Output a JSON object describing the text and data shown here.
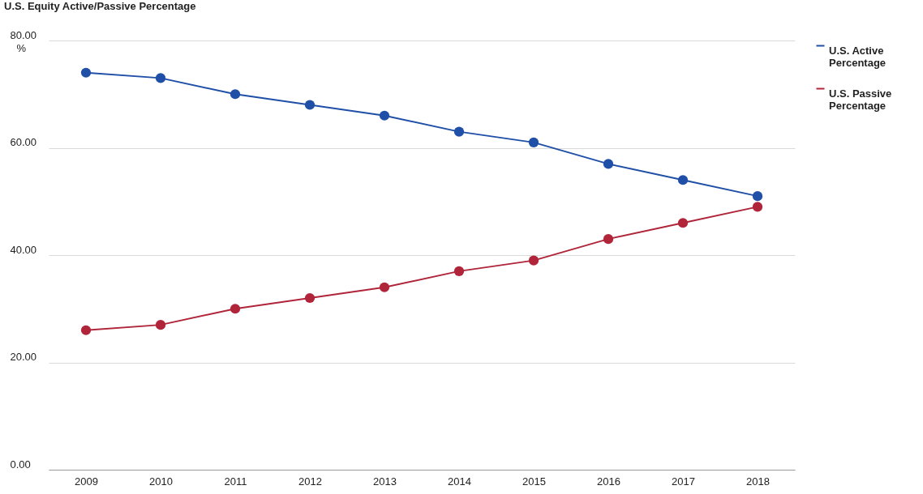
{
  "chart_data": {
    "type": "line",
    "title": "U.S. Equity Active/Passive Percentage",
    "categories": [
      "2009",
      "2010",
      "2011",
      "2012",
      "2013",
      "2014",
      "2015",
      "2016",
      "2017",
      "2018"
    ],
    "series": [
      {
        "name": "U.S. Active Percentage",
        "color": "#1f4fa6",
        "values": [
          74,
          73,
          70,
          68,
          66,
          63,
          61,
          57,
          54,
          51
        ]
      },
      {
        "name": "U.S. Passive Percentage",
        "color": "#b0253a",
        "values": [
          26,
          27,
          30,
          32,
          34,
          37,
          39,
          43,
          46,
          49
        ]
      }
    ],
    "ylabel": "%",
    "ylim": [
      0,
      80
    ],
    "yticks": [
      {
        "value": 0,
        "label": "0.00"
      },
      {
        "value": 20,
        "label": "20.00"
      },
      {
        "value": 40,
        "label": "40.00"
      },
      {
        "value": 60,
        "label": "60.00"
      },
      {
        "value": 80,
        "label": "80.00"
      }
    ],
    "grid": "y",
    "legend": "top right",
    "marker": "circle",
    "line_style": "solid"
  }
}
